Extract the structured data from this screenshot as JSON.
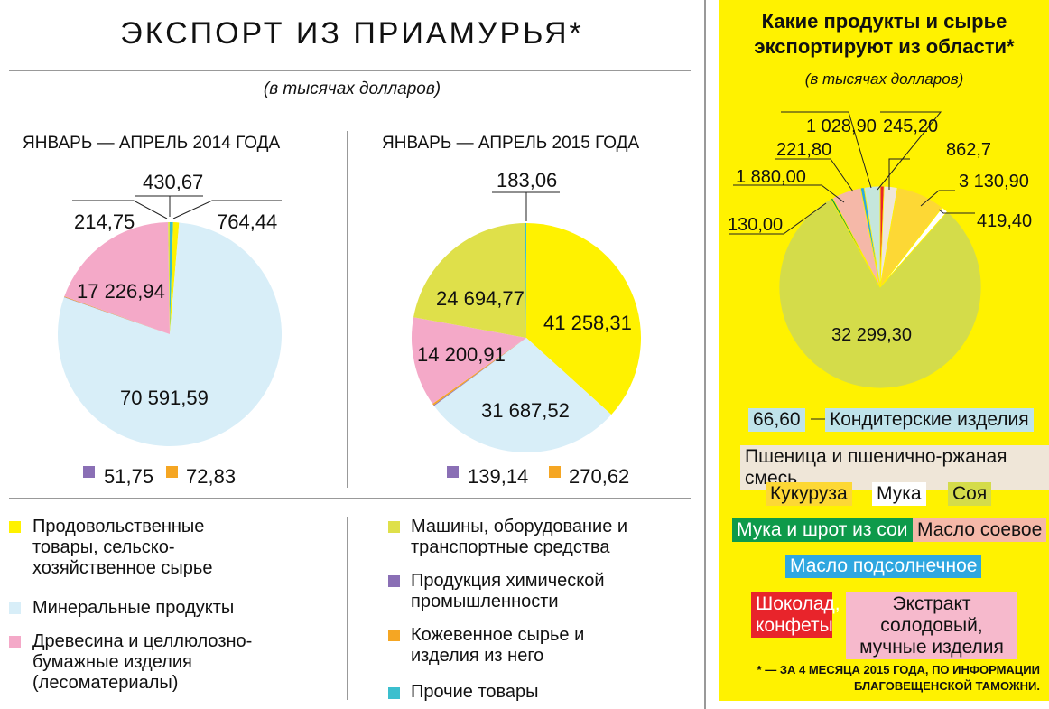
{
  "header": {
    "title": "ЭКСПОРТ ИЗ ПРИАМУРЬЯ*",
    "subtitle": "(в тысячах долларов)"
  },
  "chart_data": [
    {
      "type": "pie",
      "title": "ЯНВАРЬ — АПРЕЛЬ 2014 ГОДА",
      "slices": [
        {
          "key": "other",
          "label": "430,67",
          "value": 430.67,
          "color": "#3bbfce"
        },
        {
          "key": "food",
          "label": "764,44",
          "value": 764.44,
          "color": "#fff200"
        },
        {
          "key": "mineral",
          "label": "70 591,59",
          "value": 70591.59,
          "color": "#d8eef8"
        },
        {
          "key": "chem",
          "label": "51,75",
          "value": 51.75,
          "color": "#8a6fb5"
        },
        {
          "key": "leather",
          "label": "72,83",
          "value": 72.83,
          "color": "#f5a623"
        },
        {
          "key": "wood",
          "label": "17 226,94",
          "value": 17226.94,
          "color": "#f4a9c8"
        },
        {
          "key": "machinery",
          "label": "214,75",
          "value": 214.75,
          "color": "#dfe04a"
        }
      ]
    },
    {
      "type": "pie",
      "title": "ЯНВАРЬ — АПРЕЛЬ 2015 ГОДА",
      "slices": [
        {
          "key": "food",
          "label": "41 258,31",
          "value": 41258.31,
          "color": "#fff200"
        },
        {
          "key": "mineral",
          "label": "31 687,52",
          "value": 31687.52,
          "color": "#d8eef8"
        },
        {
          "key": "chem",
          "label": "139,14",
          "value": 139.14,
          "color": "#8a6fb5"
        },
        {
          "key": "leather",
          "label": "270,62",
          "value": 270.62,
          "color": "#f5a623"
        },
        {
          "key": "wood",
          "label": "14 200,91",
          "value": 14200.91,
          "color": "#f4a9c8"
        },
        {
          "key": "machinery",
          "label": "24 694,77",
          "value": 24694.77,
          "color": "#dfe04a"
        },
        {
          "key": "other",
          "label": "183,06",
          "value": 183.06,
          "color": "#3bbfce"
        }
      ]
    },
    {
      "type": "pie",
      "title": "Какие продукты и сырье экспортируют из области*",
      "subtitle": "(в тысячах долларов)",
      "slices": [
        {
          "label": "245,20",
          "value": 245.2,
          "color": "#e8242b",
          "category": "Шоколад, конфеты"
        },
        {
          "label": "862,7",
          "value": 862.7,
          "color": "#efe6d8",
          "category": "Пшеница и пшенично-ржаная смесь"
        },
        {
          "label": "3 130,90",
          "value": 3130.9,
          "color": "#fdd835",
          "category": "Кукуруза"
        },
        {
          "label": "419,40",
          "value": 419.4,
          "color": "#ffffff",
          "category": "Мука"
        },
        {
          "label": "32 299,30",
          "value": 32299.3,
          "color": "#d4dc4a",
          "category": "Соя"
        },
        {
          "label": "130,00",
          "value": 130.0,
          "color": "#0e9a4a",
          "category": "Мука и шрот из сои"
        },
        {
          "label": "1 880,00",
          "value": 1880.0,
          "color": "#f5b8a8",
          "category": "Масло соевое"
        },
        {
          "label": "221,80",
          "value": 221.8,
          "color": "#2fa7e0",
          "category": "Масло подсолнечное"
        },
        {
          "label": "1 028,90",
          "value": 1028.9,
          "color": "#c5e6dc"
        }
      ]
    }
  ],
  "legend": [
    {
      "label": "Продовольственные товары, сельско-хозяйственное сырье",
      "color": "#fff200"
    },
    {
      "label": "Минеральные продукты",
      "color": "#d8eef8"
    },
    {
      "label": "Древесина и целлюлозно-бумажные изделия (лесоматериалы)",
      "color": "#f4a9c8"
    },
    {
      "label": "Машины, оборудование и транспортные средства",
      "color": "#dfe04a"
    },
    {
      "label": "Продукция химической промышленности",
      "color": "#8a6fb5"
    },
    {
      "label": "Кожевенное сырье и изделия из него",
      "color": "#f5a623"
    },
    {
      "label": "Прочие товары",
      "color": "#3bbfce"
    }
  ],
  "products": {
    "konditer_value": "66,60",
    "konditer": "Кондитерские изделия",
    "wheat": "Пшеница и пшенично-ржаная смесь",
    "corn": "Кукуруза",
    "flour": "Мука",
    "soy": "Соя",
    "soymeal": "Мука и шрот из сои",
    "soyoil": "Масло соевое",
    "sunoil": "Масло подсолнечное",
    "choco": "Шоколад, конфеты",
    "malt": "Экстракт солодовый, мучные изделия"
  },
  "footnote": "* — ЗА 4 МЕСЯЦА 2015 ГОДА, ПО ИНФОРМАЦИИ БЛАГОВЕЩЕНСКОЙ ТАМОЖНИ."
}
